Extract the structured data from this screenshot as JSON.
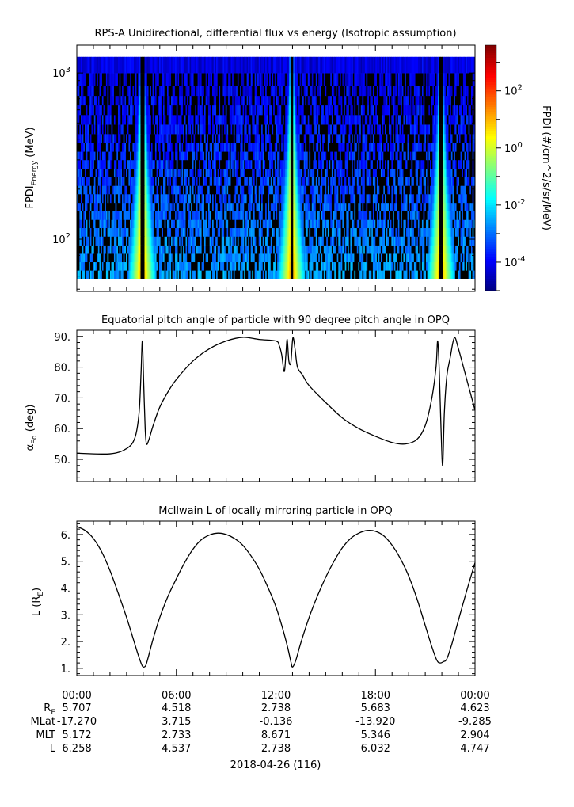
{
  "chart_data": [
    {
      "type": "heatmap",
      "title": "RPS-A Unidirectional, differential flux vs energy (Isotropic assumption)",
      "ylabel_main": "FPDI",
      "ylabel_sub": "Energy",
      "ylabel_unit": " (MeV)",
      "yscale": "log",
      "ylim": [
        48.5,
        1470
      ],
      "ytick_labels": [
        {
          "base": "10",
          "exp": "2",
          "value": 100
        },
        {
          "base": "10",
          "exp": "3",
          "value": 1000
        }
      ],
      "xlim_hours": [
        0,
        24
      ],
      "energy_channels_mev": [
        58,
        65,
        73,
        82,
        92,
        104,
        117,
        131,
        148,
        166,
        187,
        210,
        237,
        266,
        300,
        337,
        380,
        430,
        490,
        560,
        640,
        730,
        840,
        1000,
        1250
      ],
      "perigee_hours": [
        3.95,
        12.95,
        21.95
      ],
      "background_log_flux_low_energy": -2.6,
      "background_log_flux_high_energy": -4.2,
      "peak_log_flux": 1.4,
      "missing_fraction": 0.4,
      "colorbar": {
        "label": "FPDI (#/cm^2/s/sr/MeV)",
        "log_range": [
          -5.0,
          3.6
        ],
        "tick_labels": [
          {
            "base": "10",
            "exp": "2",
            "value": 2
          },
          {
            "base": "10",
            "exp": "0",
            "value": 0
          },
          {
            "base": "10",
            "exp": "-2",
            "value": -2
          },
          {
            "base": "10",
            "exp": "-4",
            "value": -4
          }
        ]
      }
    },
    {
      "type": "line",
      "title": "Equatorial pitch angle of particle with 90 degree pitch angle in OPQ",
      "ylabel_main": "α",
      "ylabel_sub": "Eq",
      "ylabel_unit": " (deg)",
      "ylim": [
        42.8,
        92
      ],
      "ytick_labels": [
        "50.",
        "60.",
        "70.",
        "80.",
        "90."
      ],
      "ytick_values": [
        50,
        60,
        70,
        80,
        90
      ],
      "x": [
        0,
        2,
        3,
        3.5,
        3.75,
        3.87,
        3.95,
        4.03,
        4.12,
        4.2,
        4.35,
        4.6,
        5,
        5.5,
        6,
        7,
        8,
        9,
        10,
        11,
        12,
        12.2,
        12.35,
        12.5,
        12.6,
        12.68,
        12.78,
        12.9,
        13.02,
        13.15,
        13.3,
        13.6,
        14,
        15,
        16,
        17,
        18,
        19,
        19.8,
        20.5,
        21,
        21.4,
        21.65,
        21.75,
        21.85,
        21.95,
        22.05,
        22.15,
        22.3,
        22.5,
        22.75,
        23,
        23.5,
        24
      ],
      "y": [
        52,
        51.8,
        53.5,
        57,
        65,
        78,
        88.5,
        75,
        60,
        55,
        56.5,
        61,
        67,
        72,
        76,
        82,
        86,
        88.5,
        89.7,
        89,
        88.5,
        87,
        84,
        78.5,
        84,
        89,
        82,
        81.5,
        89.5,
        86,
        80,
        77.5,
        74,
        68.5,
        63.5,
        60,
        57.5,
        55.5,
        55,
        56.5,
        61,
        70,
        80,
        88.5,
        78,
        60,
        48,
        65,
        77,
        83,
        89.5,
        86,
        76,
        66
      ]
    },
    {
      "type": "line",
      "title": "McIlwain L of locally mirroring particle in OPQ",
      "ylabel_main": "L (R",
      "ylabel_sub": "E",
      "ylabel_unit": ")",
      "ylim": [
        0.73,
        6.5
      ],
      "ytick_labels": [
        "1.",
        "2.",
        "3.",
        "4.",
        "5.",
        "6."
      ],
      "ytick_values": [
        1,
        2,
        3,
        4,
        5,
        6
      ],
      "x": [
        0,
        0.5,
        1,
        1.5,
        2,
        2.5,
        3,
        3.4,
        3.7,
        3.9,
        4,
        4.15,
        4.3,
        4.6,
        5,
        5.5,
        6,
        6.5,
        7,
        7.5,
        8,
        8.5,
        9,
        9.5,
        10,
        10.5,
        11,
        11.5,
        12,
        12.4,
        12.7,
        12.9,
        13,
        13.2,
        13.5,
        14,
        14.5,
        15,
        15.5,
        16,
        16.5,
        17,
        17.5,
        18,
        18.5,
        19,
        19.5,
        20,
        20.5,
        21,
        21.4,
        21.7,
        21.9,
        22.1,
        22.3,
        22.6,
        23,
        23.5,
        24
      ],
      "y": [
        6.3,
        6.15,
        5.85,
        5.35,
        4.65,
        3.8,
        2.9,
        2.1,
        1.5,
        1.15,
        1.05,
        1.1,
        1.4,
        2.1,
        2.9,
        3.7,
        4.35,
        4.95,
        5.45,
        5.8,
        5.98,
        6.05,
        6.0,
        5.85,
        5.6,
        5.2,
        4.7,
        4.05,
        3.3,
        2.5,
        1.8,
        1.25,
        1.05,
        1.3,
        1.95,
        2.9,
        3.7,
        4.4,
        5.0,
        5.5,
        5.85,
        6.05,
        6.15,
        6.12,
        5.95,
        5.6,
        5.1,
        4.45,
        3.6,
        2.6,
        1.8,
        1.3,
        1.2,
        1.25,
        1.35,
        1.9,
        2.8,
        3.9,
        4.95
      ]
    }
  ],
  "x_axis": {
    "tick_labels": [
      "00:00",
      "06:00",
      "12:00",
      "18:00",
      "00:00"
    ],
    "ephemeris": [
      {
        "label": "R",
        "label_sub": "E",
        "values": [
          "5.707",
          "4.518",
          "2.738",
          "5.683",
          "4.623"
        ]
      },
      {
        "label": "MLat",
        "label_sub": "",
        "values": [
          "-17.270",
          "3.715",
          "-0.136",
          "-13.920",
          "-9.285"
        ]
      },
      {
        "label": "MLT",
        "label_sub": "",
        "values": [
          "5.172",
          "2.733",
          "8.671",
          "5.346",
          "2.904"
        ]
      },
      {
        "label": "L",
        "label_sub": "",
        "values": [
          "6.258",
          "4.537",
          "2.738",
          "6.032",
          "4.747"
        ]
      }
    ],
    "date_label": "2018-04-26 (116)"
  }
}
